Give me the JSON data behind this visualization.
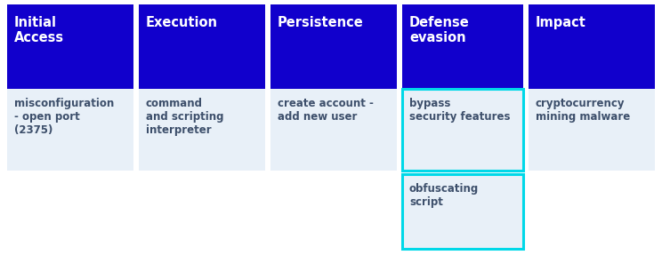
{
  "columns": [
    "Initial\nAccess",
    "Execution",
    "Persistence",
    "Defense\nevasion",
    "Impact"
  ],
  "header_bg": "#1100cc",
  "header_text_color": "#ffffff",
  "cell_bg": "#e8f0f8",
  "cell_bg2": "#ffffff",
  "cell_text_color": "#3d4f6b",
  "highlight_border_color": "#00d8e8",
  "highlight_col": 3,
  "row1_cells": [
    "misconfiguration\n- open port\n(2375)",
    "command\nand scripting\ninterpreter",
    "create account -\nadd new user",
    "bypass\nsecurity features",
    "cryptocurrency\nmining malware"
  ],
  "row2_cells": [
    "",
    "",
    "",
    "obfuscating\nscript",
    ""
  ],
  "fig_bg": "#ffffff",
  "fig_width": 7.44,
  "fig_height": 2.87,
  "dpi": 100
}
